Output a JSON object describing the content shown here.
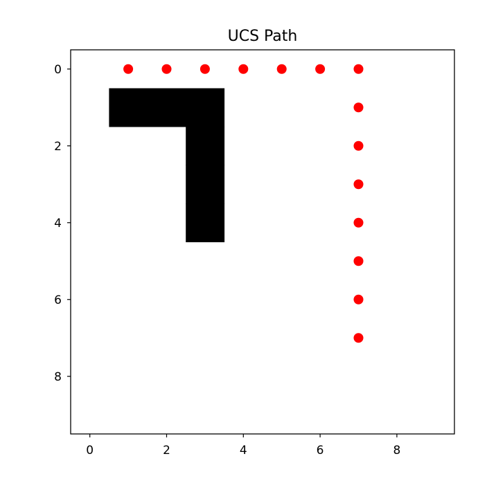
{
  "chart_data": {
    "type": "scatter",
    "title": "UCS Path",
    "xlabel": "",
    "ylabel": "",
    "xlim": [
      -0.5,
      9.5
    ],
    "ylim": [
      9.5,
      -0.5
    ],
    "y_inverted": true,
    "grid": false,
    "legend": "none",
    "xticks": [
      0,
      2,
      4,
      6,
      8
    ],
    "yticks": [
      0,
      2,
      4,
      6,
      8
    ],
    "obstacle_color": "#000000",
    "path_color": "#ff0000",
    "obstacles": [
      {
        "row": 1,
        "col": 1
      },
      {
        "row": 1,
        "col": 2
      },
      {
        "row": 1,
        "col": 3
      },
      {
        "row": 2,
        "col": 3
      },
      {
        "row": 3,
        "col": 3
      },
      {
        "row": 4,
        "col": 3
      }
    ],
    "path": [
      {
        "x": 1,
        "y": 0
      },
      {
        "x": 2,
        "y": 0
      },
      {
        "x": 3,
        "y": 0
      },
      {
        "x": 4,
        "y": 0
      },
      {
        "x": 5,
        "y": 0
      },
      {
        "x": 6,
        "y": 0
      },
      {
        "x": 7,
        "y": 0
      },
      {
        "x": 7,
        "y": 1
      },
      {
        "x": 7,
        "y": 2
      },
      {
        "x": 7,
        "y": 3
      },
      {
        "x": 7,
        "y": 4
      },
      {
        "x": 7,
        "y": 5
      },
      {
        "x": 7,
        "y": 6
      },
      {
        "x": 7,
        "y": 7
      }
    ]
  }
}
